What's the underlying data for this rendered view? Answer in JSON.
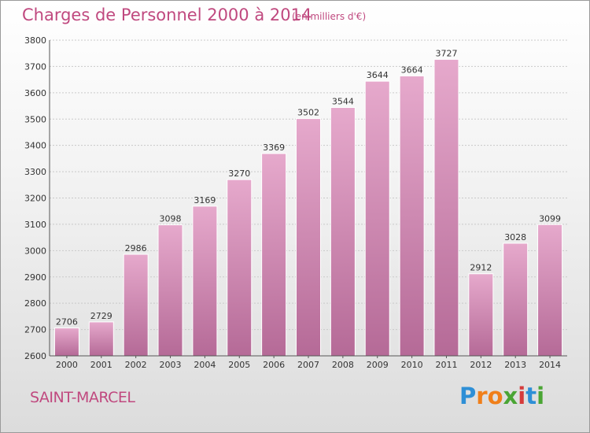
{
  "header": {
    "title": "Charges de Personnel 2000 à 2014",
    "subtitle": "(en milliers d'€)"
  },
  "location": "SAINT-MARCEL",
  "brand": {
    "text": "Proxiti",
    "letters": [
      "P",
      "r",
      "o",
      "x",
      "i",
      "t",
      "i"
    ],
    "colors": [
      "#2e8fd6",
      "#f07f1a",
      "#f07f1a",
      "#4aa534",
      "#d63b3b",
      "#2e8fd6",
      "#4aa534"
    ]
  },
  "colors": {
    "bar_light": "#e6a9cc",
    "bar_dark": "#b56a97",
    "accent": "#c0497f"
  },
  "chart_data": {
    "type": "bar",
    "title": "Charges de Personnel 2000 à 2014",
    "subtitle": "(en milliers d'€)",
    "categories": [
      "2000",
      "2001",
      "2002",
      "2003",
      "2004",
      "2005",
      "2006",
      "2007",
      "2008",
      "2009",
      "2010",
      "2011",
      "2012",
      "2013",
      "2014"
    ],
    "values": [
      2706,
      2729,
      2986,
      3098,
      3169,
      3270,
      3369,
      3502,
      3544,
      3644,
      3664,
      3727,
      2912,
      3028,
      3099
    ],
    "ylim": [
      2600,
      3800
    ],
    "yticks": [
      2600,
      2700,
      2800,
      2900,
      3000,
      3100,
      3200,
      3300,
      3400,
      3500,
      3600,
      3700,
      3800
    ],
    "grid": true,
    "legend": "none"
  }
}
